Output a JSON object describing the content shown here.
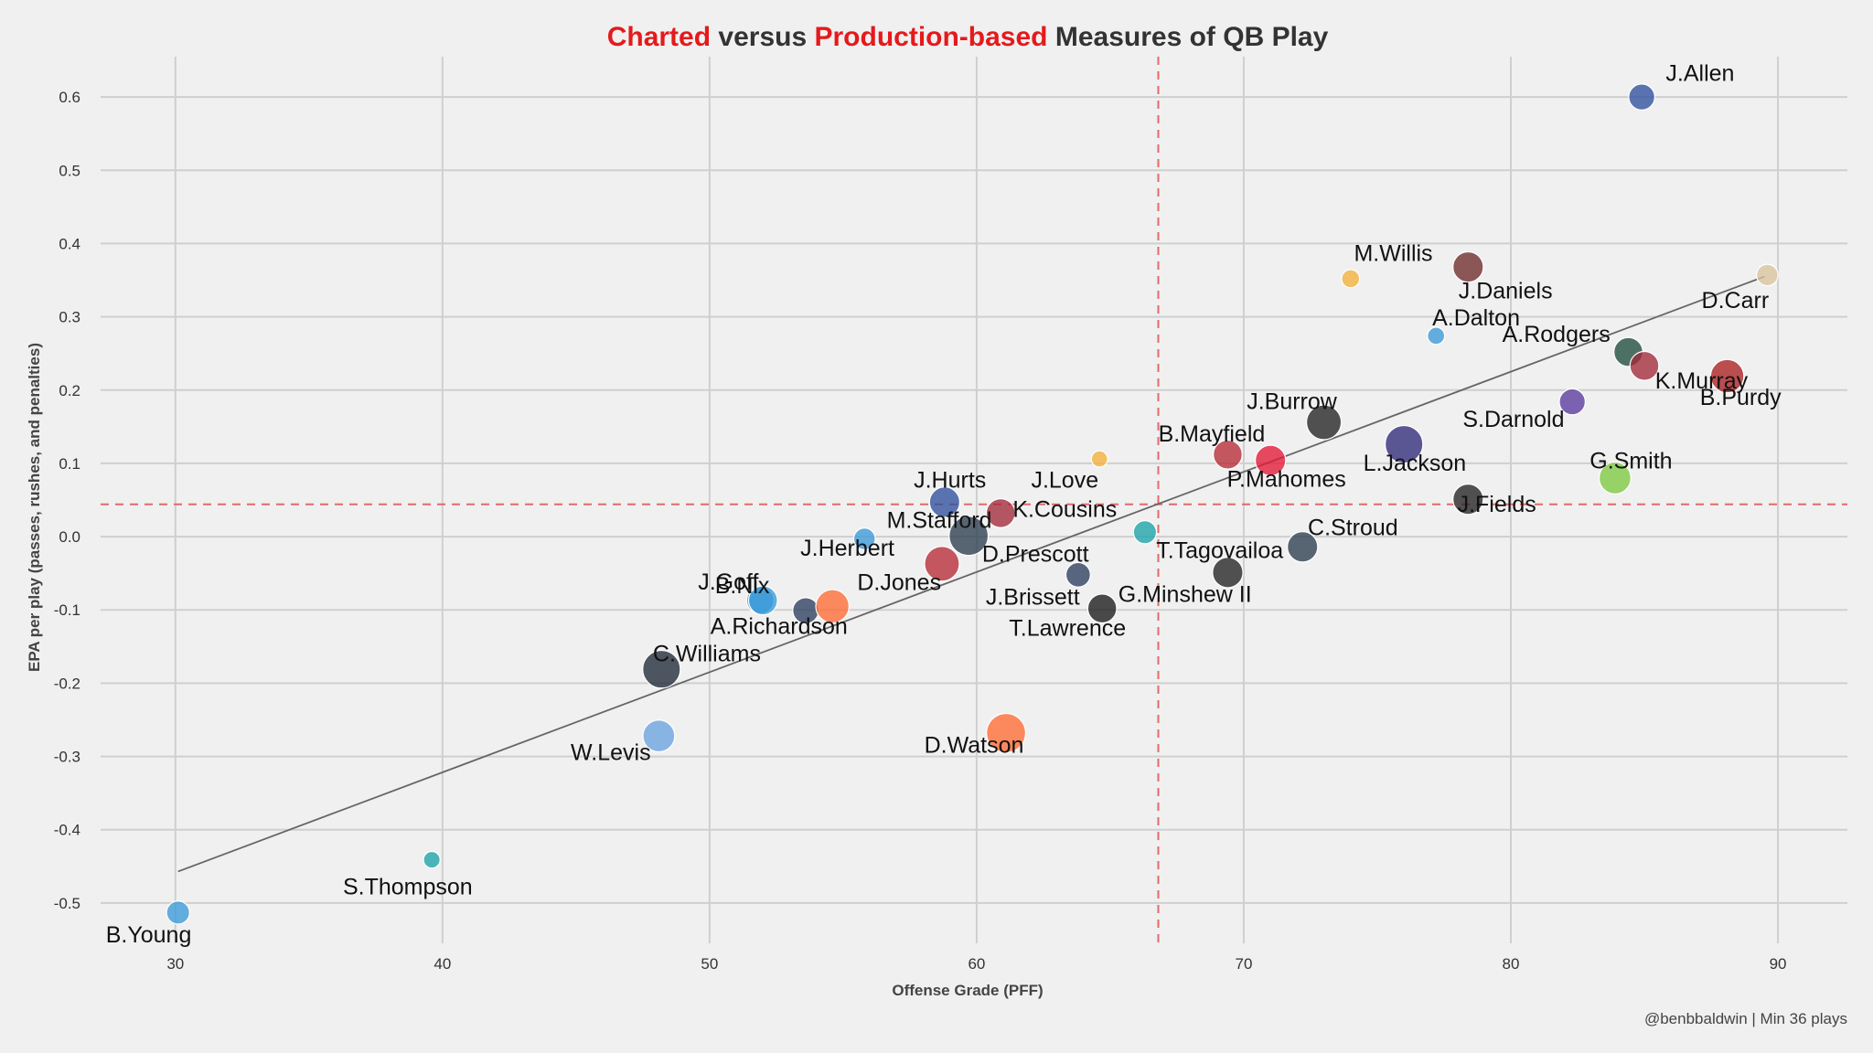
{
  "chart_data": {
    "type": "scatter",
    "title_parts": [
      {
        "text": "Charted",
        "highlight": true
      },
      {
        "text": " versus ",
        "highlight": false
      },
      {
        "text": "Production-based",
        "highlight": true
      },
      {
        "text": " Measures of QB Play",
        "highlight": false
      }
    ],
    "xlabel": "Offense Grade (PFF)",
    "ylabel": "EPA per play (passes, rushes, and penalties)",
    "credit": "@benbbaldwin | Min 36 plays",
    "xlim": [
      27.2,
      92.6
    ],
    "ylim": [
      -0.555,
      0.655
    ],
    "xticks": [
      30,
      40,
      50,
      60,
      70,
      80,
      90
    ],
    "xtick_labels": [
      "30",
      "40",
      "50",
      "60",
      "70",
      "80",
      "90"
    ],
    "yticks": [
      -0.5,
      -0.4,
      -0.3,
      -0.2,
      -0.1,
      0.0,
      0.1,
      0.2,
      0.3,
      0.4,
      0.5,
      0.6
    ],
    "ytick_labels": [
      "-0.5",
      "-0.4",
      "-0.3",
      "-0.2",
      "-0.1",
      "0.0",
      "0.1",
      "0.2",
      "0.3",
      "0.4",
      "0.5",
      "0.6"
    ],
    "ref_lines": {
      "x": 66.8,
      "y": 0.044
    },
    "trend_line": {
      "x": [
        30.1,
        89.5
      ],
      "y": [
        -0.457,
        0.355
      ]
    },
    "grid": true,
    "points": [
      {
        "name": "J.Allen",
        "x": 84.9,
        "y": 0.6,
        "size": 0.45,
        "color": "#2e4f9e",
        "lx": 85.8,
        "ly": 0.622,
        "anchor": "start"
      },
      {
        "name": "M.Willis",
        "x": 74.0,
        "y": 0.352,
        "size": 0.18,
        "color": "#f3b13a",
        "lx": 75.6,
        "ly": 0.376,
        "anchor": "middle"
      },
      {
        "name": "J.Daniels",
        "x": 78.4,
        "y": 0.368,
        "size": 0.6,
        "color": "#6e2a2a",
        "lx": 79.8,
        "ly": 0.325,
        "anchor": "middle"
      },
      {
        "name": "D.Carr",
        "x": 89.6,
        "y": 0.357,
        "size": 0.3,
        "color": "#d8c49c",
        "lx": 88.4,
        "ly": 0.312,
        "anchor": "middle"
      },
      {
        "name": "A.Dalton",
        "x": 77.2,
        "y": 0.274,
        "size": 0.15,
        "color": "#3a9ad9",
        "lx": 78.7,
        "ly": 0.288,
        "anchor": "middle"
      },
      {
        "name": "A.Rodgers",
        "x": 84.4,
        "y": 0.252,
        "size": 0.55,
        "color": "#1e4d3c",
        "lx": 81.7,
        "ly": 0.266,
        "anchor": "middle"
      },
      {
        "name": "K.Murray",
        "x": 85.0,
        "y": 0.233,
        "size": 0.55,
        "color": "#a3293a",
        "lx": 85.4,
        "ly": 0.202,
        "anchor": "start"
      },
      {
        "name": "B.Purdy",
        "x": 88.1,
        "y": 0.219,
        "size": 0.7,
        "color": "#aa1f1f",
        "lx": 88.6,
        "ly": 0.18,
        "anchor": "middle"
      },
      {
        "name": "S.Darnold",
        "x": 82.3,
        "y": 0.184,
        "size": 0.45,
        "color": "#5a3a9e",
        "lx": 80.1,
        "ly": 0.15,
        "anchor": "middle"
      },
      {
        "name": "J.Burrow",
        "x": 73.0,
        "y": 0.156,
        "size": 0.75,
        "color": "#222222",
        "lx": 71.8,
        "ly": 0.174,
        "anchor": "middle"
      },
      {
        "name": "B.Mayfield",
        "x": 69.4,
        "y": 0.112,
        "size": 0.55,
        "color": "#b62a35",
        "lx": 68.8,
        "ly": 0.13,
        "anchor": "middle"
      },
      {
        "name": "P.Mahomes",
        "x": 71.0,
        "y": 0.104,
        "size": 0.6,
        "color": "#e31837",
        "lx": 71.6,
        "ly": 0.068,
        "anchor": "middle"
      },
      {
        "name": "L.Jackson",
        "x": 76.0,
        "y": 0.126,
        "size": 0.85,
        "color": "#2f2a7a",
        "lx": 76.4,
        "ly": 0.09,
        "anchor": "middle"
      },
      {
        "name": "G.Smith",
        "x": 83.9,
        "y": 0.08,
        "size": 0.65,
        "color": "#7ec940",
        "lx": 84.5,
        "ly": 0.093,
        "anchor": "middle"
      },
      {
        "name": "J.Fields",
        "x": 78.4,
        "y": 0.051,
        "size": 0.6,
        "color": "#222222",
        "lx": 78.0,
        "ly": 0.034,
        "anchor": "start"
      },
      {
        "name": "J.Love",
        "x": 64.6,
        "y": 0.106,
        "size": 0.12,
        "color": "#f3b13a",
        "lx": 63.3,
        "ly": 0.067,
        "anchor": "middle"
      },
      {
        "name": "J.Hurts",
        "x": 58.8,
        "y": 0.047,
        "size": 0.6,
        "color": "#2e4f9e",
        "lx": 59.0,
        "ly": 0.067,
        "anchor": "middle"
      },
      {
        "name": "K.Cousins",
        "x": 60.9,
        "y": 0.032,
        "size": 0.55,
        "color": "#a3293a",
        "lx": 63.3,
        "ly": 0.027,
        "anchor": "middle"
      },
      {
        "name": "M.Stafford",
        "x": 55.8,
        "y": -0.003,
        "size": 0.3,
        "color": "#3a9ad9",
        "lx": 58.6,
        "ly": 0.012,
        "anchor": "middle"
      },
      {
        "name": "T.Tagovailoa",
        "x": 66.3,
        "y": 0.006,
        "size": 0.35,
        "color": "#1ba3a8",
        "lx": 69.1,
        "ly": -0.029,
        "anchor": "middle"
      },
      {
        "name": "C.Stroud",
        "x": 72.2,
        "y": -0.014,
        "size": 0.6,
        "color": "#2c3e4f",
        "lx": 72.4,
        "ly": 0.002,
        "anchor": "start"
      },
      {
        "name": "J.Herbert",
        "x": 51.9,
        "y": -0.087,
        "size": 0.5,
        "color": "#3a9ad9",
        "lx": 53.4,
        "ly": -0.026,
        "anchor": "start"
      },
      {
        "name": "D.Prescott",
        "x": 59.7,
        "y": 0.001,
        "size": 0.9,
        "color": "#2c3e4f",
        "lx": 62.2,
        "ly": -0.034,
        "anchor": "middle"
      },
      {
        "name": "D.Jones",
        "x": 58.7,
        "y": -0.037,
        "size": 0.75,
        "color": "#b62a35",
        "lx": 57.1,
        "ly": -0.073,
        "anchor": "middle"
      },
      {
        "name": "J.Goff",
        "x": 52.0,
        "y": -0.087,
        "size": 0.55,
        "color": "#3a9ad9",
        "lx": 50.7,
        "ly": -0.072,
        "anchor": "middle"
      },
      {
        "name": "B.Nix",
        "x": 53.6,
        "y": -0.101,
        "size": 0.45,
        "color": "#2c3e5f",
        "lx": 50.2,
        "ly": -0.077,
        "anchor": "start"
      },
      {
        "name": "A.Richardson",
        "x": 54.6,
        "y": -0.095,
        "size": 0.7,
        "color": "#ff6a33",
        "lx": 52.6,
        "ly": -0.133,
        "anchor": "middle"
      },
      {
        "name": "J.Brissett",
        "x": 63.8,
        "y": -0.052,
        "size": 0.4,
        "color": "#2c3e5f",
        "lx": 62.1,
        "ly": -0.093,
        "anchor": "middle"
      },
      {
        "name": "G.Minshew II",
        "x": 69.4,
        "y": -0.049,
        "size": 0.6,
        "color": "#222222",
        "lx": 67.8,
        "ly": -0.089,
        "anchor": "middle"
      },
      {
        "name": "T.Lawrence",
        "x": 64.7,
        "y": -0.098,
        "size": 0.55,
        "color": "#1a1a1a",
        "lx": 63.4,
        "ly": -0.135,
        "anchor": "middle"
      },
      {
        "name": "C.Williams",
        "x": 48.2,
        "y": -0.181,
        "size": 0.85,
        "color": "#1f2937",
        "lx": 49.9,
        "ly": -0.17,
        "anchor": "middle"
      },
      {
        "name": "W.Levis",
        "x": 48.1,
        "y": -0.272,
        "size": 0.65,
        "color": "#6aa3e0",
        "lx": 46.3,
        "ly": -0.305,
        "anchor": "middle"
      },
      {
        "name": "D.Watson",
        "x": 61.1,
        "y": -0.268,
        "size": 0.9,
        "color": "#ff6a33",
        "lx": 59.9,
        "ly": -0.295,
        "anchor": "middle"
      },
      {
        "name": "S.Thompson",
        "x": 39.6,
        "y": -0.441,
        "size": 0.13,
        "color": "#1ba3a8",
        "lx": 38.7,
        "ly": -0.488,
        "anchor": "middle"
      },
      {
        "name": "B.Young",
        "x": 30.1,
        "y": -0.513,
        "size": 0.35,
        "color": "#3a9ad9",
        "lx": 29.0,
        "ly": -0.554,
        "anchor": "middle"
      }
    ]
  }
}
